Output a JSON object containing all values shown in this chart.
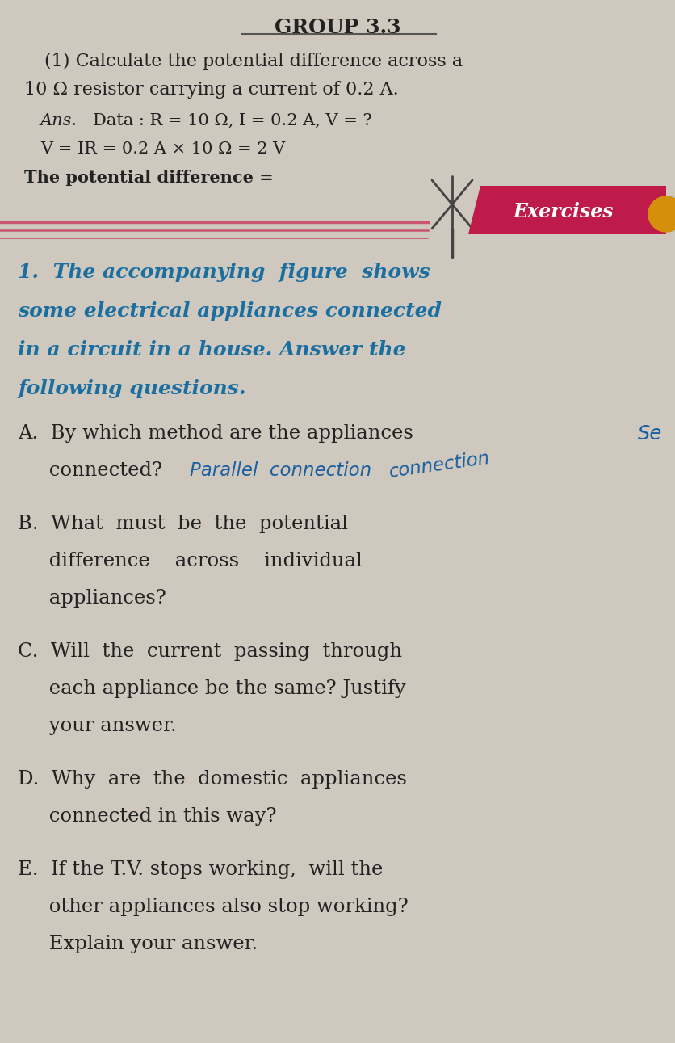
{
  "bg_color": "#cec8be",
  "title": "GROUP 3.3",
  "q1_label": "(1) Calculate the potential difference across a",
  "q1_line2": "10 Ω resistor carrying a current of 0.2 A.",
  "ans_label": "Ans.",
  "ans_data": "Data : R = 10 Ω, I = 0.2 A, V = ?",
  "ans_formula": "V = IR = 0.2 A × 10 Ω = 2 V",
  "ans_conclusion": "The potential difference =",
  "exercises_label": "Exercises",
  "exercises_bg": "#bf1b4a",
  "divider_color": "#c94060",
  "dark_color": "#222222",
  "blue_color": "#1a6fa0",
  "hand_color": "#1a5fa0",
  "exercise_q1_line1": "1.  The accompanying  figure  shows",
  "exercise_q1_line2": "some electrical appliances connected",
  "exercise_q1_line3": "in a circuit in a house. Answer the",
  "exercise_q1_line4": "following questions.",
  "qA_line1": "A.  By which method are the appliances",
  "qA_hand1": "Se",
  "qA_line2": "     connected?",
  "qA_hand2": "Parallel  connection",
  "qB_line1": "B.  What  must  be  the  potential",
  "qB_line2": "     difference    across    individual",
  "qB_line3": "     appliances?",
  "qC_line1": "C.  Will  the  current  passing  through",
  "qC_line2": "     each appliance be the same? Justify",
  "qC_line3": "     your answer.",
  "qD_line1": "D.  Why  are  the  domestic  appliances",
  "qD_line2": "     connected in this way?",
  "qE_line1": "E.  If the T.V. stops working,  will the",
  "qE_line2": "     other appliances also stop working?",
  "qE_line3": "     Explain your answer."
}
